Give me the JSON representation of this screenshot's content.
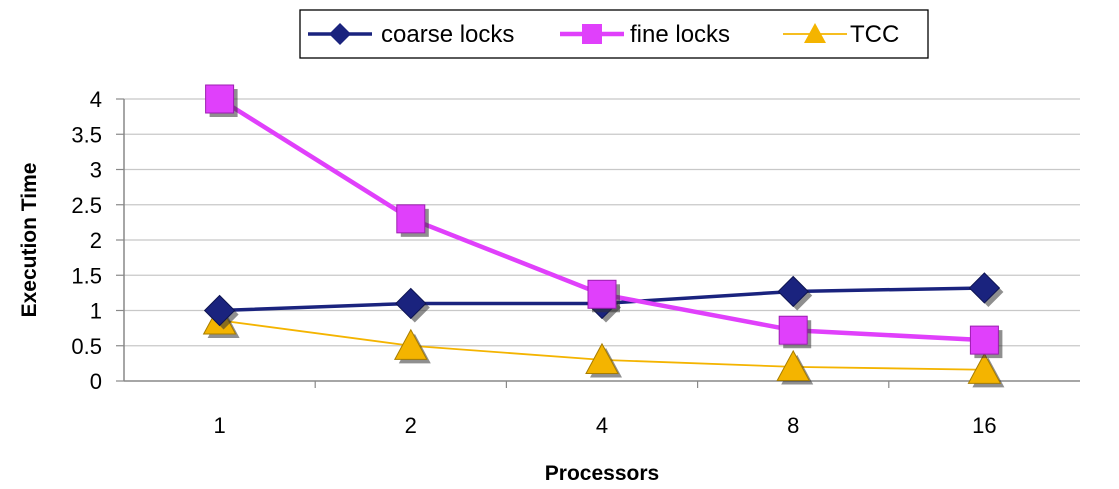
{
  "chart_data": {
    "type": "line",
    "categories": [
      "1",
      "2",
      "4",
      "8",
      "16"
    ],
    "series": [
      {
        "name": "coarse locks",
        "values": [
          1.0,
          1.1,
          1.1,
          1.27,
          1.32
        ],
        "color": "#1a237e",
        "marker": "diamond"
      },
      {
        "name": "fine locks",
        "values": [
          4.0,
          2.3,
          1.23,
          0.72,
          0.58
        ],
        "color": "#e040fb",
        "marker": "square"
      },
      {
        "name": "TCC",
        "values": [
          0.86,
          0.5,
          0.3,
          0.2,
          0.16
        ],
        "color": "#f4b400",
        "marker": "triangle"
      }
    ],
    "xlabel": "Processors",
    "ylabel": "Execution Time",
    "ylim": [
      0,
      4
    ],
    "yticks": [
      "0",
      "0.5",
      "1",
      "1.5",
      "2",
      "2.5",
      "3",
      "3.5",
      "4"
    ],
    "grid": true,
    "legend_position": "top"
  }
}
